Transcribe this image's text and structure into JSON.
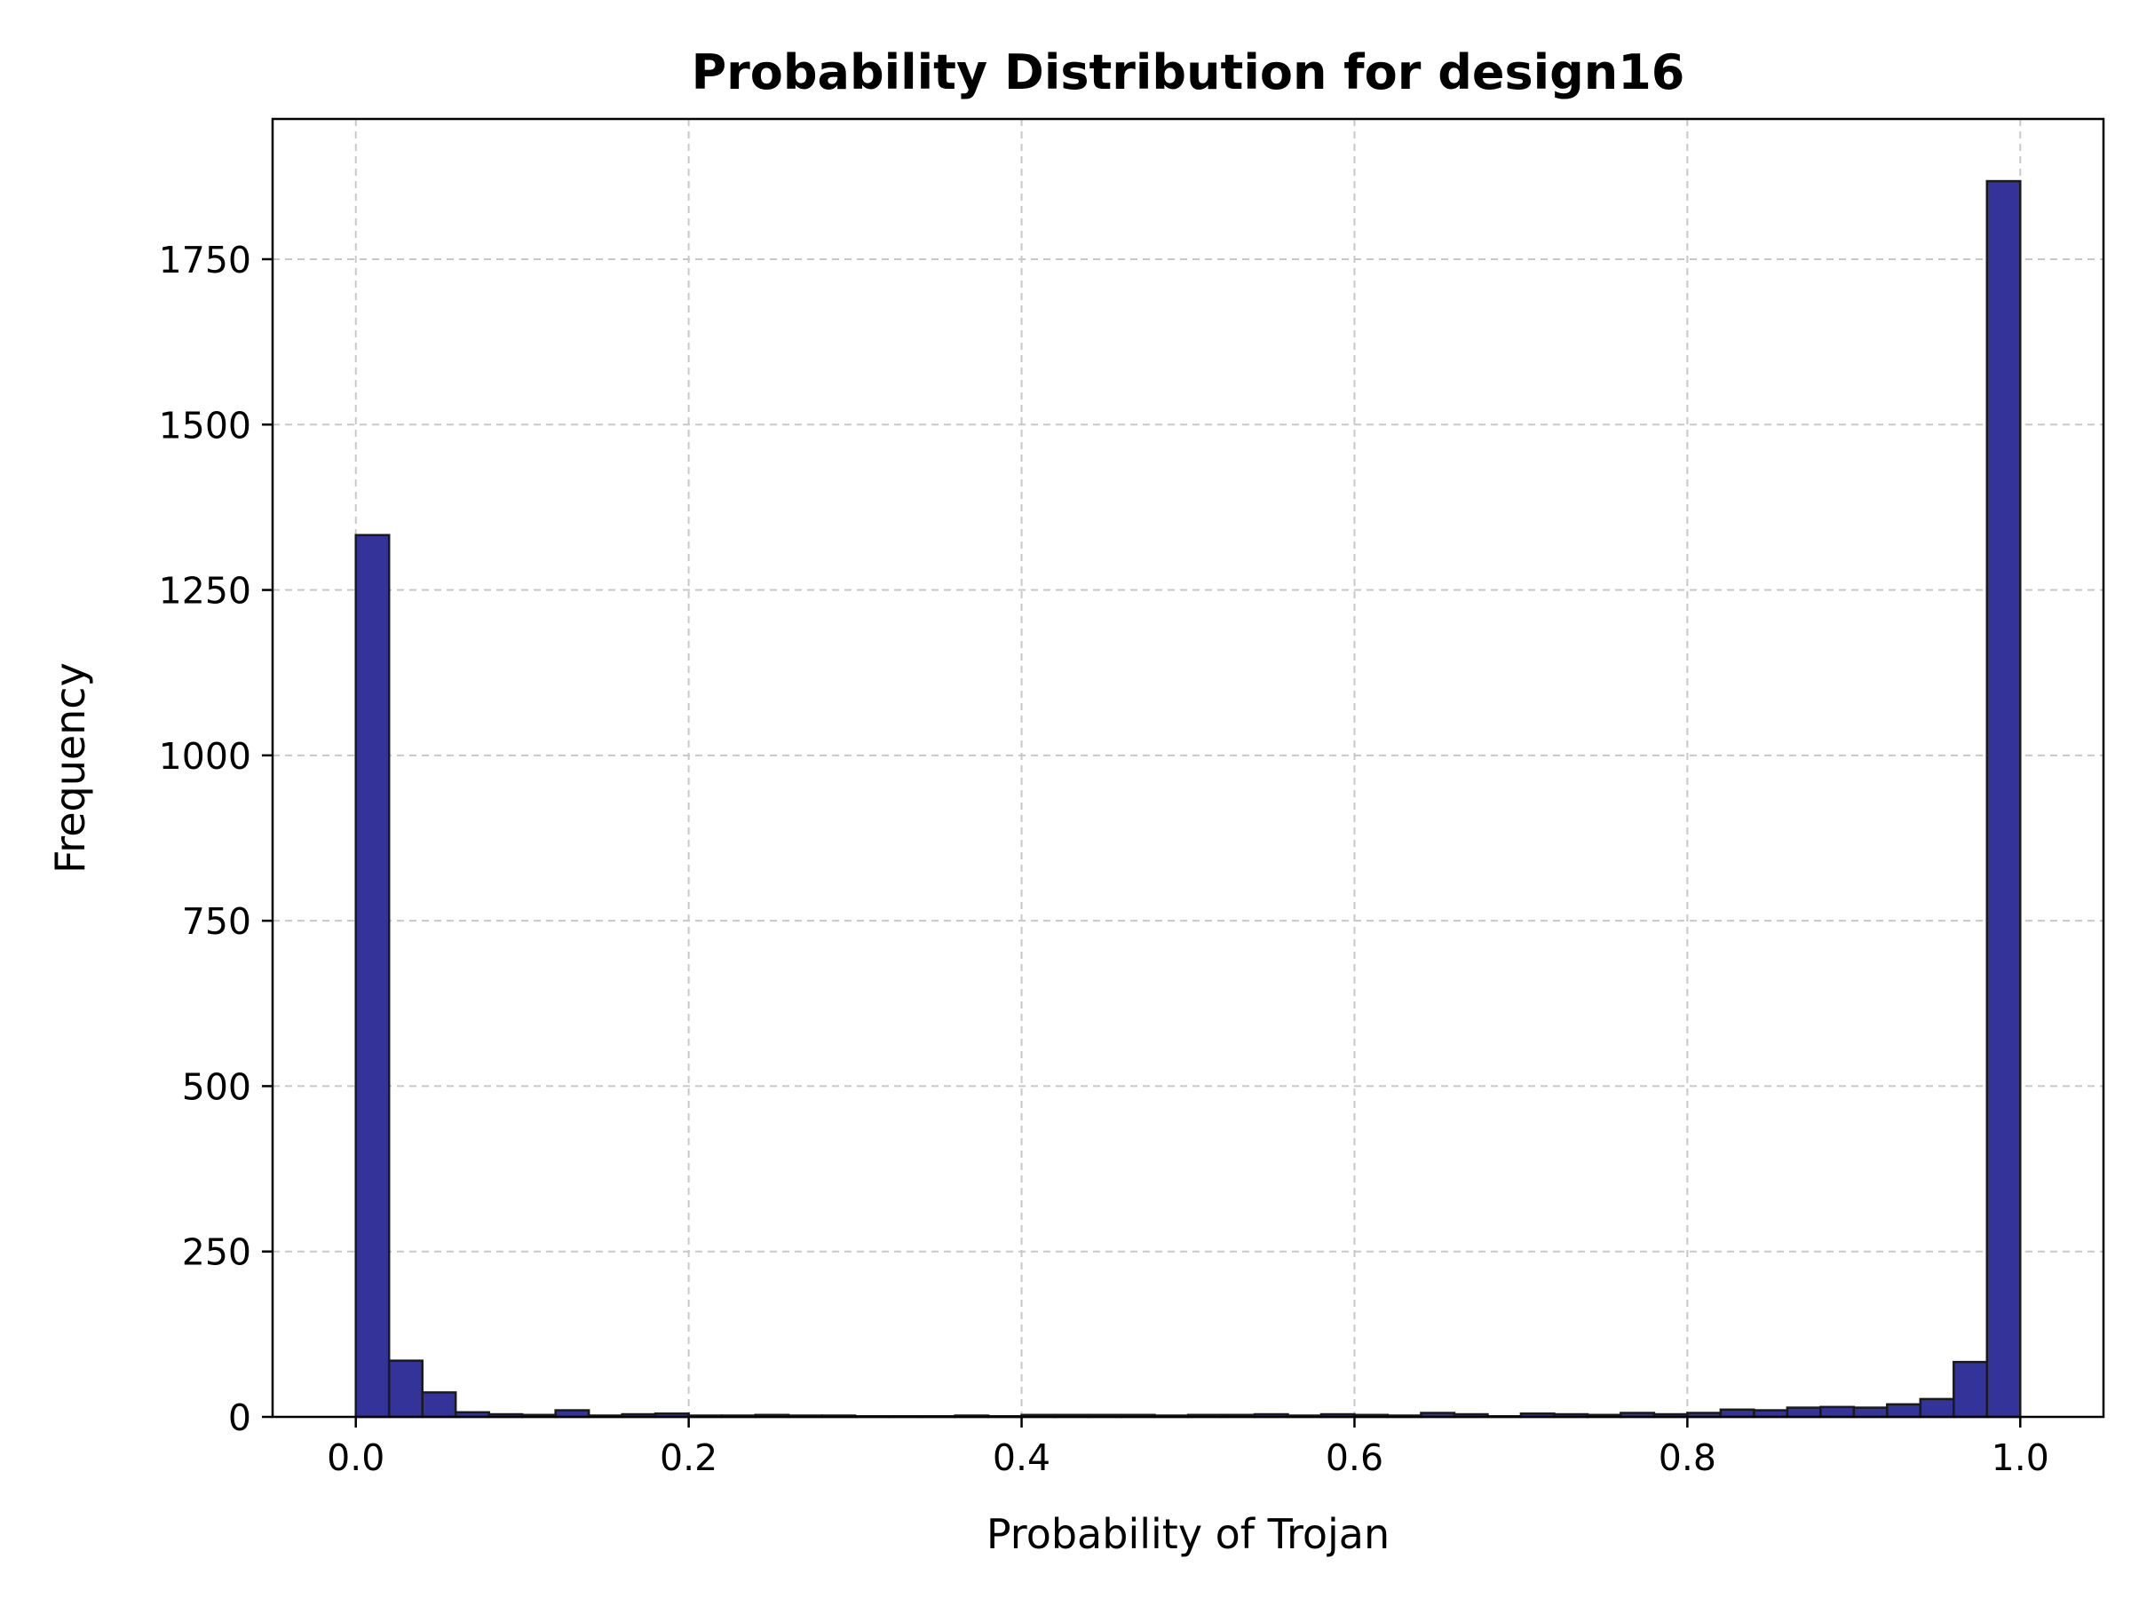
{
  "chart_data": {
    "type": "bar",
    "title": "Probability Distribution for design16",
    "xlabel": "Probability of Trojan",
    "ylabel": "Frequency",
    "xlim": [
      -0.05,
      1.05
    ],
    "ylim": [
      0,
      1962
    ],
    "grid": true,
    "bar_color": "#333399",
    "edge_color": "#1a1a1a",
    "bin_edges": [
      0.0,
      0.02,
      0.04,
      0.06,
      0.08,
      0.1,
      0.12,
      0.14,
      0.16,
      0.18,
      0.2,
      0.22,
      0.24,
      0.26,
      0.28,
      0.3,
      0.32,
      0.34,
      0.36,
      0.38,
      0.4,
      0.42,
      0.44,
      0.46,
      0.48,
      0.5,
      0.52,
      0.54,
      0.56,
      0.58,
      0.6,
      0.62,
      0.64,
      0.66,
      0.68,
      0.7,
      0.72,
      0.74,
      0.76,
      0.78,
      0.8,
      0.82,
      0.84,
      0.86,
      0.88,
      0.9,
      0.92,
      0.94,
      0.96,
      0.98,
      1.0
    ],
    "values": [
      1333,
      85,
      37,
      7,
      4,
      3,
      10,
      2,
      4,
      5,
      2,
      2,
      3,
      2,
      2,
      1,
      1,
      1,
      2,
      1,
      3,
      3,
      3,
      3,
      2,
      3,
      3,
      4,
      2,
      4,
      3,
      2,
      6,
      4,
      1,
      5,
      4,
      3,
      6,
      4,
      6,
      11,
      10,
      14,
      15,
      14,
      19,
      27,
      83,
      1868
    ],
    "xticks": [
      0.0,
      0.2,
      0.4,
      0.6,
      0.8,
      1.0
    ],
    "xtick_labels": [
      "0.0",
      "0.2",
      "0.4",
      "0.6",
      "0.8",
      "1.0"
    ],
    "yticks": [
      0,
      250,
      500,
      750,
      1000,
      1250,
      1500,
      1750
    ],
    "ytick_labels": [
      "0",
      "250",
      "500",
      "750",
      "1000",
      "1250",
      "1500",
      "1750"
    ]
  }
}
